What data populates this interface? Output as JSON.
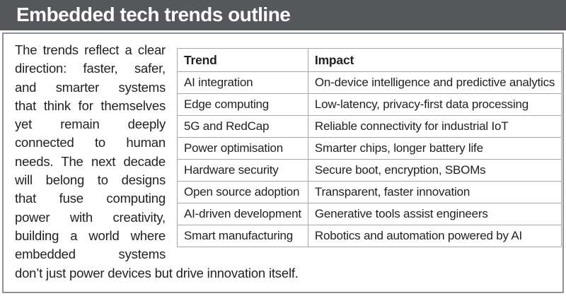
{
  "title": "Embedded tech trends outline",
  "intro": {
    "lines": [
      "The trends reflect a clear",
      "direction: faster, safer,",
      "and smarter systems",
      "that think for themselves",
      "yet remain deeply",
      "connected to human",
      "needs. The next decade",
      "will belong to designs",
      "that fuse computing",
      "power with creativity,",
      "building a world where",
      "embedded systems",
      "don’t just power devices but drive innovation itself."
    ],
    "full_text": "The trends reflect a clear direction: faster, safer, and smarter systems that think for themselves yet remain deeply connected to human needs. The next decade will belong to designs that fuse computing power with creativity, building a world where embedded systems don’t just power devices but drive innovation itself."
  },
  "table": {
    "headers": [
      "Trend",
      "Impact"
    ],
    "rows": [
      [
        "AI integration",
        "On-device intelligence and predictive analytics"
      ],
      [
        "Edge computing",
        "Low-latency, privacy-first data processing"
      ],
      [
        "5G and RedCap",
        "Reliable connectivity for industrial IoT"
      ],
      [
        "Power optimisation",
        "Smarter chips, longer battery life"
      ],
      [
        "Hardware security",
        "Secure boot, encryption, SBOMs"
      ],
      [
        "Open source adoption",
        "Transparent, faster innovation"
      ],
      [
        "AI-driven development",
        "Generative tools assist engineers"
      ],
      [
        "Smart manufacturing",
        "Robotics and automation powered by AI"
      ]
    ]
  },
  "colors": {
    "title_bar_bg": "#56575a",
    "title_text": "#ffffff",
    "body_text": "#231f20",
    "box_border": "#8e9093",
    "table_border": "#a6a8ab"
  }
}
